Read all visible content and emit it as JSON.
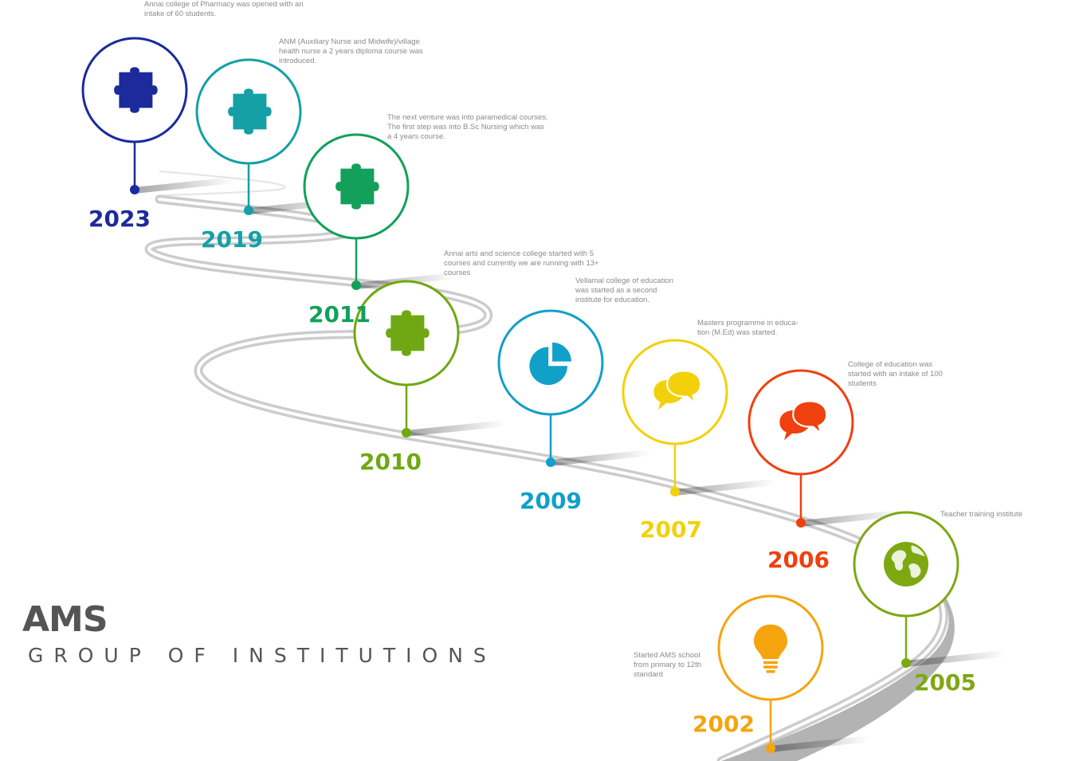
{
  "brand": {
    "title": "AMS",
    "subtitle": "GROUP OF INSTITUTIONS"
  },
  "milestones": [
    {
      "year": "2023",
      "color": "#1c2a9c",
      "icon": "puzzle-icon",
      "lines": [
        "Annai college of Pharmacy was opened with an",
        "intake of 60 students."
      ]
    },
    {
      "year": "2019",
      "color": "#14a0a5",
      "icon": "puzzle-icon",
      "lines": [
        "ANM (Auxiliary Nurse and Midwife)/village",
        "health nurse a 2 years diploma course was",
        "introduced."
      ]
    },
    {
      "year": "2011",
      "color": "#12a05a",
      "icon": "puzzle-icon",
      "lines": [
        "The next venture was into paramedical courses.",
        "The first step was into B.Sc Nursing which was",
        "a 4 years course."
      ]
    },
    {
      "year": "2010",
      "color": "#6fa812",
      "icon": "puzzle-icon",
      "lines": [
        "Annai arts and science college started with 5",
        "courses and currently we are running with 13+",
        "courses"
      ]
    },
    {
      "year": "2009",
      "color": "#10a0c8",
      "icon": "pie-chart-icon",
      "lines": [
        "Vellamal college of education",
        "was started as a second",
        "institute for education."
      ]
    },
    {
      "year": "2007",
      "color": "#f2d10a",
      "icon": "chat-bubbles-icon",
      "lines": [
        "Masters programme in educa-",
        "tion (M.Ed) was started."
      ]
    },
    {
      "year": "2006",
      "color": "#f04010",
      "icon": "chat-bubbles-icon",
      "lines": [
        "College of education was",
        "started with an intake of 100",
        "students"
      ]
    },
    {
      "year": "2005",
      "color": "#7ea812",
      "icon": "globe-icon",
      "lines": [
        "Teacher training institute"
      ]
    },
    {
      "year": "2002",
      "color": "#f5a40e",
      "icon": "lightbulb-icon",
      "lines": [
        "Started AMS school",
        "from primary to 12th",
        "standard"
      ]
    }
  ]
}
